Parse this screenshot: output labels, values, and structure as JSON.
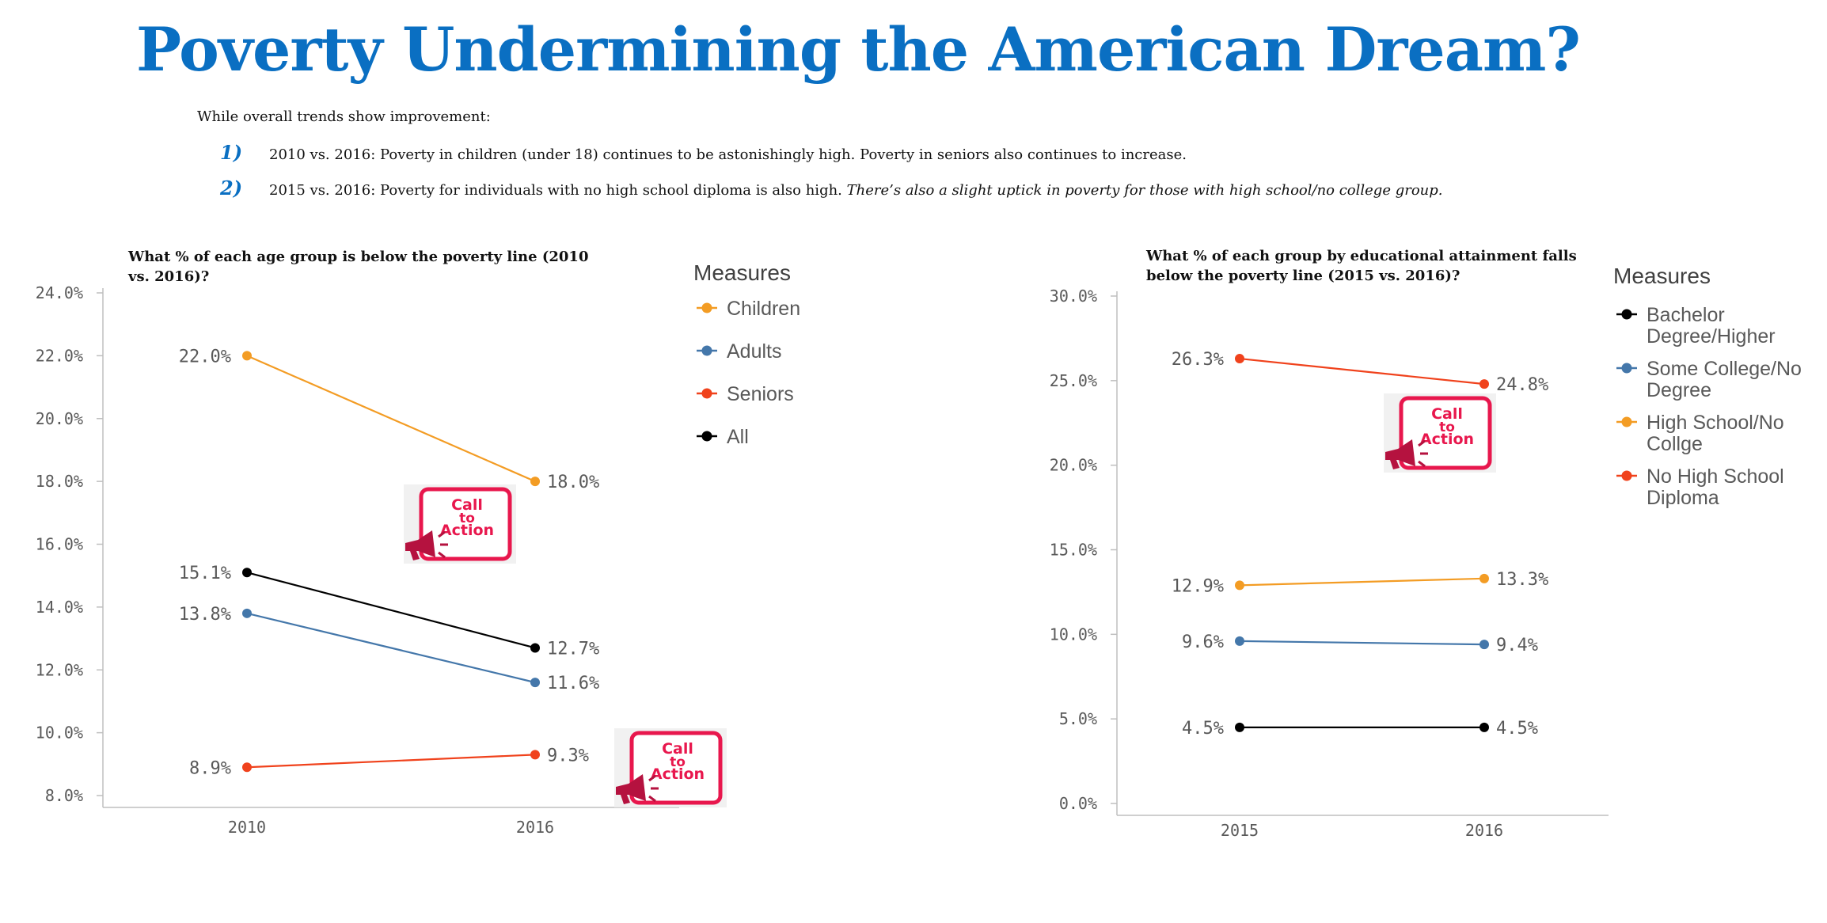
{
  "title": "Poverty Undermining the American Dream?",
  "intro": "While overall trends show improvement:",
  "points": [
    {
      "num": "1)",
      "text": "2010 vs. 2016: Poverty in children (under 18) continues to be astonishingly high. Poverty in seniors also continues to increase.",
      "italic": ""
    },
    {
      "num": "2)",
      "text": "2015 vs. 2016: Poverty for individuals with no high school diploma is also high. ",
      "italic": "There’s also a slight uptick in poverty for those with high school/no college group."
    }
  ],
  "colors": {
    "title": "#0a6fc2",
    "point_num": "#0a6fc2",
    "axis": "#bfbfbf",
    "cta_red": "#e8174d",
    "cta_pink": "#c2185b",
    "megaphone": "#b5123f"
  },
  "callout": {
    "line1": "Call",
    "line2": "to",
    "line3": "Action",
    "icon": "megaphone-icon"
  },
  "chart_data": [
    {
      "type": "line",
      "title_lines": [
        "What % of each age group is below the poverty line (2010",
        "vs. 2016)?"
      ],
      "categories": [
        "2010",
        "2016"
      ],
      "ylim": [
        8,
        24
      ],
      "yticks": [
        8,
        10,
        12,
        14,
        16,
        18,
        20,
        22,
        24
      ],
      "y_tick_labels": [
        "8.0%",
        "10.0%",
        "12.0%",
        "14.0%",
        "16.0%",
        "18.0%",
        "20.0%",
        "22.0%",
        "24.0%"
      ],
      "legend_title": "Measures",
      "legend_position": "right",
      "series": [
        {
          "name": "Children",
          "color": "#f39c24",
          "values": [
            22.0,
            18.0
          ],
          "labels": [
            "22.0%",
            "18.0%"
          ],
          "legend_lines": [
            "Children"
          ]
        },
        {
          "name": "Adults",
          "color": "#4477aa",
          "values": [
            13.8,
            11.6
          ],
          "labels": [
            "13.8%",
            "11.6%"
          ],
          "legend_lines": [
            "Adults"
          ]
        },
        {
          "name": "Seniors",
          "color": "#f0421c",
          "values": [
            8.9,
            9.3
          ],
          "labels": [
            "8.9%",
            "9.3%"
          ],
          "legend_lines": [
            "Seniors"
          ]
        },
        {
          "name": "All",
          "color": "#000000",
          "values": [
            15.1,
            12.7
          ],
          "labels": [
            "15.1%",
            "12.7%"
          ],
          "legend_lines": [
            "All"
          ]
        }
      ]
    },
    {
      "type": "line",
      "title_lines": [
        "What % of each group by educational attainment falls",
        "below the poverty line (2015 vs. 2016)?"
      ],
      "categories": [
        "2015",
        "2016"
      ],
      "ylim": [
        0,
        30
      ],
      "yticks": [
        0,
        5,
        10,
        15,
        20,
        25,
        30
      ],
      "y_tick_labels": [
        "0.0%",
        "5.0%",
        "10.0%",
        "15.0%",
        "20.0%",
        "25.0%",
        "30.0%"
      ],
      "legend_title": "Measures",
      "legend_position": "right",
      "series": [
        {
          "name": "Bachelor Degree/Higher",
          "color": "#000000",
          "values": [
            4.5,
            4.5
          ],
          "labels": [
            "4.5%",
            "4.5%"
          ],
          "legend_lines": [
            "Bachelor",
            "Degree/Higher"
          ]
        },
        {
          "name": "Some College/No Degree",
          "color": "#4477aa",
          "values": [
            9.6,
            9.4
          ],
          "labels": [
            "9.6%",
            "9.4%"
          ],
          "legend_lines": [
            "Some College/No",
            "Degree"
          ]
        },
        {
          "name": "High School/No Collge",
          "color": "#f39c24",
          "values": [
            12.9,
            13.3
          ],
          "labels": [
            "12.9%",
            "13.3%"
          ],
          "legend_lines": [
            "High School/No",
            "Collge"
          ]
        },
        {
          "name": "No High School Diploma",
          "color": "#f0421c",
          "values": [
            26.3,
            24.8
          ],
          "labels": [
            "26.3%",
            "24.8%"
          ],
          "legend_lines": [
            "No High School",
            "Diploma"
          ]
        }
      ]
    }
  ]
}
